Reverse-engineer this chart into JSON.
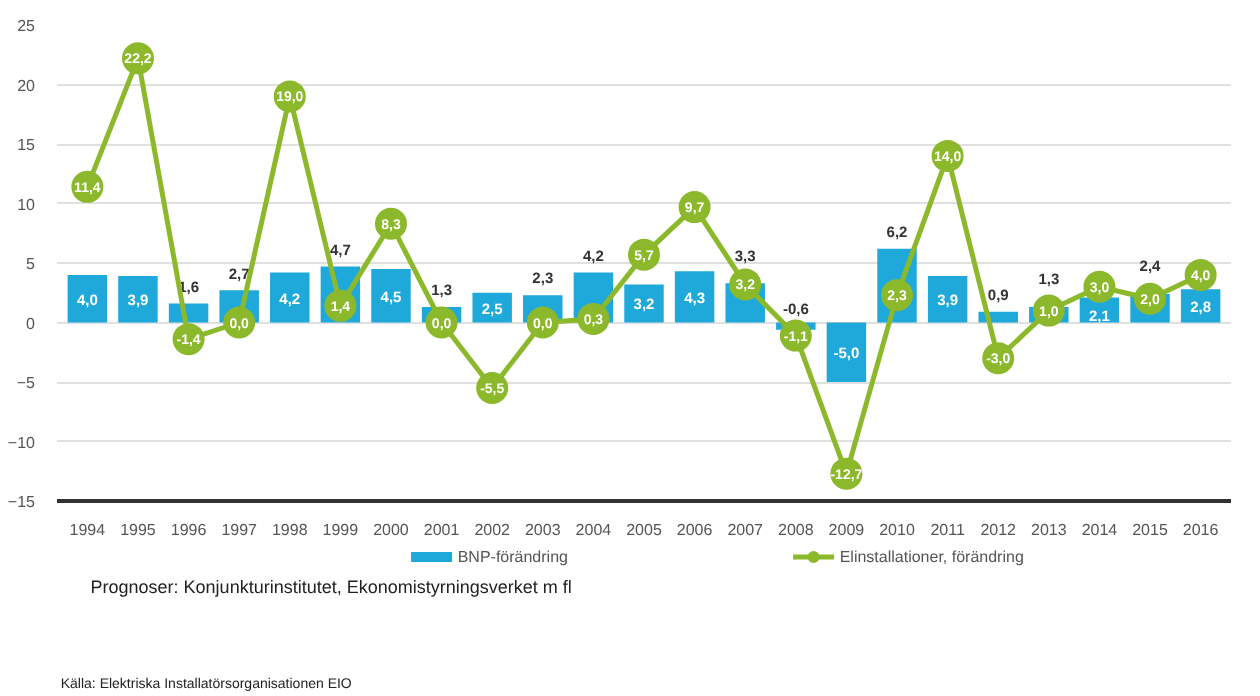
{
  "chart_data": {
    "type": "bar",
    "categories": [
      "1994",
      "1995",
      "1996",
      "1997",
      "1998",
      "1999",
      "2000",
      "2001",
      "2002",
      "2003",
      "2004",
      "2005",
      "2006",
      "2007",
      "2008",
      "2009",
      "2010",
      "2011",
      "2012",
      "2013",
      "2014",
      "2015",
      "2016"
    ],
    "series": [
      {
        "name": "BNP-förändring",
        "color": "#1fa8da",
        "values": [
          4.0,
          3.9,
          1.6,
          2.7,
          4.2,
          4.7,
          4.5,
          1.3,
          2.5,
          2.3,
          4.2,
          3.2,
          4.3,
          3.3,
          -0.6,
          -5.0,
          6.2,
          3.9,
          0.9,
          1.3,
          2.1,
          2.4,
          2.8
        ],
        "value_labels": [
          "4,0",
          "3,9",
          "1,6",
          "2,7",
          "4,2",
          "4,7",
          "4,5",
          "1,3",
          "2,5",
          "2,3",
          "4,2",
          "3,2",
          "4,3",
          "3,3",
          "-0,6",
          "-5,0",
          "6,2",
          "3,9",
          "0,9",
          "1,3",
          "2,1",
          "2,4",
          "2,8"
        ]
      },
      {
        "name": "Elinstallationer, förändring",
        "type": "line",
        "color": "#8cb82b",
        "marker": "circle",
        "values": [
          11.4,
          22.2,
          -1.4,
          0.0,
          19.0,
          1.4,
          8.3,
          0.0,
          -5.5,
          0.0,
          0.3,
          5.7,
          9.7,
          3.2,
          -1.1,
          -12.7,
          2.3,
          14.0,
          -3.0,
          1.0,
          3.0,
          2.0,
          4.0
        ],
        "value_labels": [
          "11,4",
          "22,2",
          "-1,4",
          "0,0",
          "19,0",
          "1,4",
          "8,3",
          "0,0",
          "-5,5",
          "0,0",
          "0,3",
          "5,7",
          "9,7",
          "3,2",
          "-1,1",
          "-12,7",
          "2,3",
          "14,0",
          "-3,0",
          "1,0",
          "3,0",
          "2,0",
          "4,0"
        ]
      }
    ],
    "ylim": [
      -15,
      25
    ],
    "yticks": [
      -15,
      -10,
      -5,
      0,
      5,
      10,
      15,
      20,
      25
    ],
    "grid": "y",
    "legend": "bottom",
    "annotations": [
      "Prognoser: Konjunkturinstitutet, Ekonomistyrningsverket m fl",
      "Källa: Elektriska Installatörsorganisationen EIO"
    ]
  }
}
